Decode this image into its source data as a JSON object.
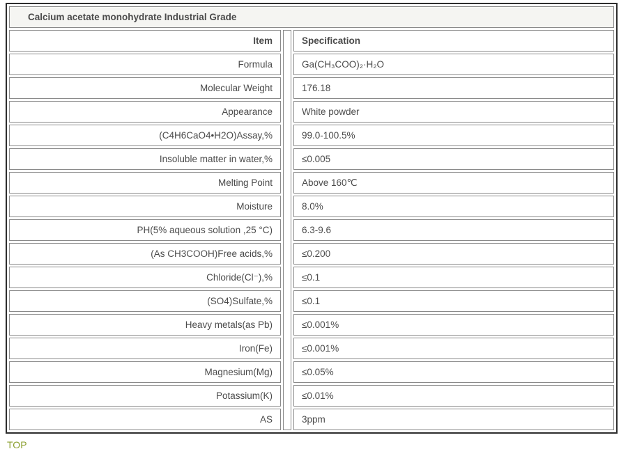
{
  "title": "Calcium acetate monohydrate Industrial Grade",
  "colors": {
    "title_green": "#528c06",
    "top_link": "#8a9e2d",
    "cell_border": "#8a8a8a",
    "outer_border": "#2d2d2d",
    "title_bg": "#f5f5f2",
    "text": "#4b4b4b"
  },
  "table": {
    "header": {
      "item": "Item",
      "spec": "Specification"
    },
    "rows": [
      {
        "item": "Formula",
        "spec": "Ga(CH₃COO)₂·H₂O"
      },
      {
        "item": "Molecular Weight",
        "spec": "176.18"
      },
      {
        "item": "Appearance",
        "spec": "White powder"
      },
      {
        "item": "(C4H6CaO4•H2O)Assay,%",
        "spec": "99.0-100.5%"
      },
      {
        "item": "Insoluble matter in water,%",
        "spec": "≤0.005"
      },
      {
        "item": "Melting Point",
        "spec": "Above 160℃"
      },
      {
        "item": "Moisture",
        "spec": "8.0%"
      },
      {
        "item": "PH(5% aqueous solution ,25 °C)",
        "spec": "6.3-9.6"
      },
      {
        "item": "(As CH3COOH)Free acids,%",
        "spec": "≤0.200"
      },
      {
        "item": "Chloride(Cl⁻),%",
        "spec": "≤0.1"
      },
      {
        "item": "(SO4)Sulfate,%",
        "spec": "≤0.1"
      },
      {
        "item": "Heavy metals(as Pb)",
        "spec": "≤0.001%"
      },
      {
        "item": "Iron(Fe)",
        "spec": "≤0.001%"
      },
      {
        "item": "Magnesium(Mg)",
        "spec": "≤0.05%"
      },
      {
        "item": "Potassium(K)",
        "spec": "≤0.01%"
      },
      {
        "item": "AS",
        "spec": "3ppm"
      }
    ]
  },
  "footer": {
    "top_label": "TOP"
  }
}
